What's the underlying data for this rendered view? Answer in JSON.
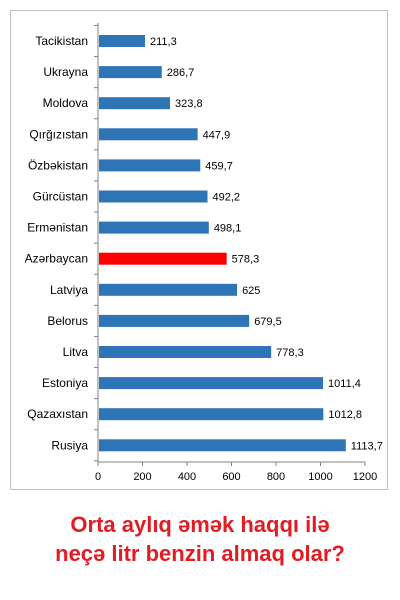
{
  "caption": {
    "line1": "Orta aylıq əmək haqqı ilə",
    "line2": "neçə litr benzin almaq olar?"
  },
  "colors": {
    "bar": "#2e75b6",
    "highlight": "#ff0000",
    "caption": "#e31b23"
  },
  "chart_data": {
    "type": "bar",
    "orientation": "horizontal",
    "categories": [
      "Tacikistan",
      "Ukrayna",
      "Moldova",
      "Qırğızıstan",
      "Özbəkistan",
      "Gürcüstan",
      "Ermənistan",
      "Azərbaycan",
      "Latviya",
      "Belorus",
      "Litva",
      "Estoniya",
      "Qazaxıstan",
      "Rusiya"
    ],
    "values": [
      211.3,
      286.7,
      323.8,
      447.9,
      459.7,
      492.2,
      498.1,
      578.3,
      625,
      679.5,
      778.3,
      1011.4,
      1012.8,
      1113.7
    ],
    "value_labels": [
      "211,3",
      "286,7",
      "323,8",
      "447,9",
      "459,7",
      "492,2",
      "498,1",
      "578,3",
      "625",
      "679,5",
      "778,3",
      "1011,4",
      "1012,8",
      "1113,7"
    ],
    "highlight_category": "Azərbaycan",
    "xlim": [
      0,
      1200
    ],
    "xticks": [
      0,
      200,
      400,
      600,
      800,
      1000,
      1200
    ],
    "grid": false,
    "legend": "none"
  }
}
